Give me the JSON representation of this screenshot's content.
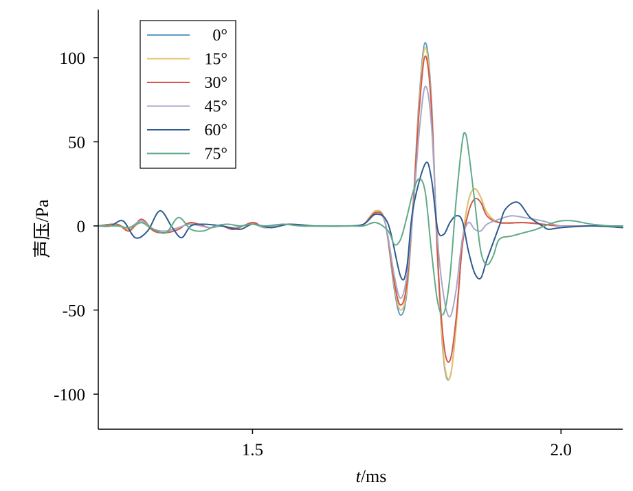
{
  "chart_data": {
    "type": "line",
    "title": "",
    "xlabel": "t/ms",
    "xlabel_var": "t",
    "xlabel_unit": "/ms",
    "ylabel": "声压/Pa",
    "xlim": [
      1.25,
      2.1
    ],
    "ylim": [
      -120,
      127
    ],
    "xticks": [
      1.5,
      2.0
    ],
    "xtick_labels": [
      "1.5",
      "2.0"
    ],
    "yticks": [
      100,
      50,
      0,
      -50,
      -100
    ],
    "ytick_labels": [
      "100",
      "50",
      "0",
      "-50",
      "-100"
    ],
    "grid": false,
    "legend_position": "top-left",
    "series": [
      {
        "name": "0°",
        "color": "#5b9cc4",
        "points": [
          [
            1.25,
            0
          ],
          [
            1.28,
            1
          ],
          [
            1.3,
            -2
          ],
          [
            1.32,
            2
          ],
          [
            1.34,
            -3
          ],
          [
            1.36,
            -4
          ],
          [
            1.38,
            -2
          ],
          [
            1.4,
            2
          ],
          [
            1.43,
            -1
          ],
          [
            1.45,
            0
          ],
          [
            1.47,
            -2
          ],
          [
            1.5,
            2
          ],
          [
            1.52,
            -1
          ],
          [
            1.55,
            1
          ],
          [
            1.58,
            0
          ],
          [
            1.62,
            0
          ],
          [
            1.66,
            0
          ],
          [
            1.68,
            1
          ],
          [
            1.7,
            9
          ],
          [
            1.715,
            2
          ],
          [
            1.73,
            -38
          ],
          [
            1.74,
            -53
          ],
          [
            1.75,
            -40
          ],
          [
            1.76,
            10
          ],
          [
            1.77,
            75
          ],
          [
            1.78,
            109
          ],
          [
            1.79,
            75
          ],
          [
            1.8,
            -20
          ],
          [
            1.81,
            -80
          ],
          [
            1.82,
            -90
          ],
          [
            1.83,
            -60
          ],
          [
            1.84,
            -10
          ],
          [
            1.85,
            15
          ],
          [
            1.86,
            22
          ],
          [
            1.87,
            17
          ],
          [
            1.88,
            8
          ],
          [
            1.9,
            2
          ],
          [
            1.94,
            2
          ],
          [
            1.97,
            1
          ],
          [
            2.0,
            0
          ],
          [
            2.05,
            0
          ],
          [
            2.1,
            0
          ]
        ]
      },
      {
        "name": "15°",
        "color": "#e6c36a",
        "points": [
          [
            1.25,
            0
          ],
          [
            1.28,
            1
          ],
          [
            1.3,
            -2
          ],
          [
            1.32,
            2
          ],
          [
            1.34,
            -3
          ],
          [
            1.36,
            -4
          ],
          [
            1.38,
            -2
          ],
          [
            1.4,
            2
          ],
          [
            1.43,
            -1
          ],
          [
            1.45,
            0
          ],
          [
            1.47,
            -2
          ],
          [
            1.5,
            2
          ],
          [
            1.52,
            -1
          ],
          [
            1.55,
            1
          ],
          [
            1.58,
            0
          ],
          [
            1.62,
            0
          ],
          [
            1.66,
            0
          ],
          [
            1.68,
            1
          ],
          [
            1.7,
            9
          ],
          [
            1.715,
            2
          ],
          [
            1.73,
            -36
          ],
          [
            1.74,
            -50
          ],
          [
            1.75,
            -38
          ],
          [
            1.76,
            10
          ],
          [
            1.77,
            72
          ],
          [
            1.78,
            106
          ],
          [
            1.79,
            72
          ],
          [
            1.8,
            -20
          ],
          [
            1.81,
            -78
          ],
          [
            1.82,
            -90
          ],
          [
            1.83,
            -60
          ],
          [
            1.84,
            -10
          ],
          [
            1.85,
            15
          ],
          [
            1.86,
            22
          ],
          [
            1.87,
            17
          ],
          [
            1.88,
            8
          ],
          [
            1.9,
            2
          ],
          [
            1.94,
            2
          ],
          [
            1.97,
            1
          ],
          [
            2.0,
            0
          ],
          [
            2.05,
            0
          ],
          [
            2.1,
            0
          ]
        ]
      },
      {
        "name": "30°",
        "color": "#d4574a",
        "points": [
          [
            1.25,
            0
          ],
          [
            1.28,
            1
          ],
          [
            1.3,
            -3
          ],
          [
            1.32,
            4
          ],
          [
            1.34,
            -3
          ],
          [
            1.36,
            -4
          ],
          [
            1.38,
            -2
          ],
          [
            1.4,
            2
          ],
          [
            1.43,
            -1
          ],
          [
            1.45,
            0
          ],
          [
            1.47,
            -2
          ],
          [
            1.5,
            2
          ],
          [
            1.52,
            -1
          ],
          [
            1.55,
            1
          ],
          [
            1.58,
            0
          ],
          [
            1.62,
            0
          ],
          [
            1.66,
            0
          ],
          [
            1.68,
            1
          ],
          [
            1.7,
            8
          ],
          [
            1.715,
            2
          ],
          [
            1.73,
            -34
          ],
          [
            1.74,
            -47
          ],
          [
            1.75,
            -35
          ],
          [
            1.76,
            10
          ],
          [
            1.77,
            68
          ],
          [
            1.78,
            101
          ],
          [
            1.79,
            70
          ],
          [
            1.8,
            -18
          ],
          [
            1.81,
            -70
          ],
          [
            1.82,
            -80
          ],
          [
            1.83,
            -55
          ],
          [
            1.84,
            -12
          ],
          [
            1.85,
            8
          ],
          [
            1.86,
            16
          ],
          [
            1.87,
            14
          ],
          [
            1.88,
            6
          ],
          [
            1.9,
            2
          ],
          [
            1.94,
            2
          ],
          [
            1.97,
            1
          ],
          [
            2.0,
            0
          ],
          [
            2.05,
            0
          ],
          [
            2.1,
            0
          ]
        ]
      },
      {
        "name": "45°",
        "color": "#a7a8c9",
        "points": [
          [
            1.25,
            0
          ],
          [
            1.28,
            0
          ],
          [
            1.3,
            -1
          ],
          [
            1.32,
            3
          ],
          [
            1.34,
            -2
          ],
          [
            1.36,
            -3
          ],
          [
            1.38,
            -1
          ],
          [
            1.4,
            1
          ],
          [
            1.43,
            -1
          ],
          [
            1.45,
            0
          ],
          [
            1.47,
            -1
          ],
          [
            1.5,
            1
          ],
          [
            1.52,
            -1
          ],
          [
            1.55,
            1
          ],
          [
            1.58,
            0
          ],
          [
            1.62,
            0
          ],
          [
            1.66,
            0
          ],
          [
            1.68,
            1
          ],
          [
            1.7,
            7
          ],
          [
            1.715,
            2
          ],
          [
            1.73,
            -30
          ],
          [
            1.74,
            -43
          ],
          [
            1.75,
            -30
          ],
          [
            1.76,
            8
          ],
          [
            1.77,
            55
          ],
          [
            1.78,
            83
          ],
          [
            1.79,
            60
          ],
          [
            1.8,
            -8
          ],
          [
            1.81,
            -42
          ],
          [
            1.82,
            -54
          ],
          [
            1.83,
            -38
          ],
          [
            1.84,
            -8
          ],
          [
            1.85,
            2
          ],
          [
            1.86,
            -2
          ],
          [
            1.87,
            -3
          ],
          [
            1.88,
            1
          ],
          [
            1.9,
            4
          ],
          [
            1.92,
            6
          ],
          [
            1.94,
            5
          ],
          [
            1.97,
            3
          ],
          [
            2.0,
            0
          ],
          [
            2.05,
            0
          ],
          [
            2.1,
            0
          ]
        ]
      },
      {
        "name": "60°",
        "color": "#2e5a8e",
        "points": [
          [
            1.25,
            0
          ],
          [
            1.27,
            0
          ],
          [
            1.29,
            3
          ],
          [
            1.31,
            -7
          ],
          [
            1.33,
            -3
          ],
          [
            1.35,
            9
          ],
          [
            1.37,
            -1
          ],
          [
            1.385,
            -7
          ],
          [
            1.4,
            0
          ],
          [
            1.42,
            1
          ],
          [
            1.45,
            0
          ],
          [
            1.48,
            -2
          ],
          [
            1.5,
            1
          ],
          [
            1.53,
            -1
          ],
          [
            1.56,
            1
          ],
          [
            1.6,
            0
          ],
          [
            1.65,
            0
          ],
          [
            1.68,
            1
          ],
          [
            1.7,
            7
          ],
          [
            1.72,
            1
          ],
          [
            1.74,
            -30
          ],
          [
            1.75,
            -25
          ],
          [
            1.76,
            10
          ],
          [
            1.78,
            37
          ],
          [
            1.79,
            28
          ],
          [
            1.8,
            -2
          ],
          [
            1.81,
            -5
          ],
          [
            1.82,
            2
          ],
          [
            1.83,
            6
          ],
          [
            1.84,
            3
          ],
          [
            1.85,
            -15
          ],
          [
            1.86,
            -28
          ],
          [
            1.87,
            -31
          ],
          [
            1.88,
            -20
          ],
          [
            1.9,
            0
          ],
          [
            1.91,
            10
          ],
          [
            1.93,
            14
          ],
          [
            1.95,
            5
          ],
          [
            1.97,
            0
          ],
          [
            1.98,
            -2
          ],
          [
            2.0,
            -1
          ],
          [
            2.05,
            0
          ],
          [
            2.1,
            -1
          ]
        ]
      },
      {
        "name": "75°",
        "color": "#5fab87",
        "points": [
          [
            1.25,
            0
          ],
          [
            1.28,
            0
          ],
          [
            1.3,
            -1
          ],
          [
            1.32,
            2
          ],
          [
            1.34,
            -2
          ],
          [
            1.36,
            -4
          ],
          [
            1.38,
            5
          ],
          [
            1.4,
            -2
          ],
          [
            1.42,
            -3
          ],
          [
            1.44,
            0
          ],
          [
            1.46,
            1
          ],
          [
            1.48,
            0
          ],
          [
            1.5,
            1
          ],
          [
            1.52,
            0
          ],
          [
            1.55,
            1
          ],
          [
            1.58,
            0
          ],
          [
            1.62,
            0
          ],
          [
            1.66,
            0
          ],
          [
            1.68,
            0
          ],
          [
            1.7,
            2
          ],
          [
            1.72,
            -3
          ],
          [
            1.73,
            -11
          ],
          [
            1.74,
            -8
          ],
          [
            1.75,
            5
          ],
          [
            1.76,
            20
          ],
          [
            1.77,
            28
          ],
          [
            1.78,
            20
          ],
          [
            1.79,
            -15
          ],
          [
            1.8,
            -45
          ],
          [
            1.81,
            -52
          ],
          [
            1.82,
            -30
          ],
          [
            1.83,
            15
          ],
          [
            1.84,
            50
          ],
          [
            1.845,
            55
          ],
          [
            1.85,
            45
          ],
          [
            1.86,
            15
          ],
          [
            1.87,
            -15
          ],
          [
            1.88,
            -23
          ],
          [
            1.89,
            -18
          ],
          [
            1.9,
            -8
          ],
          [
            1.92,
            -6
          ],
          [
            1.94,
            -4
          ],
          [
            1.96,
            -2
          ],
          [
            1.98,
            1
          ],
          [
            2.0,
            3
          ],
          [
            2.02,
            3
          ],
          [
            2.05,
            1
          ],
          [
            2.08,
            0
          ],
          [
            2.1,
            0
          ]
        ]
      }
    ]
  }
}
